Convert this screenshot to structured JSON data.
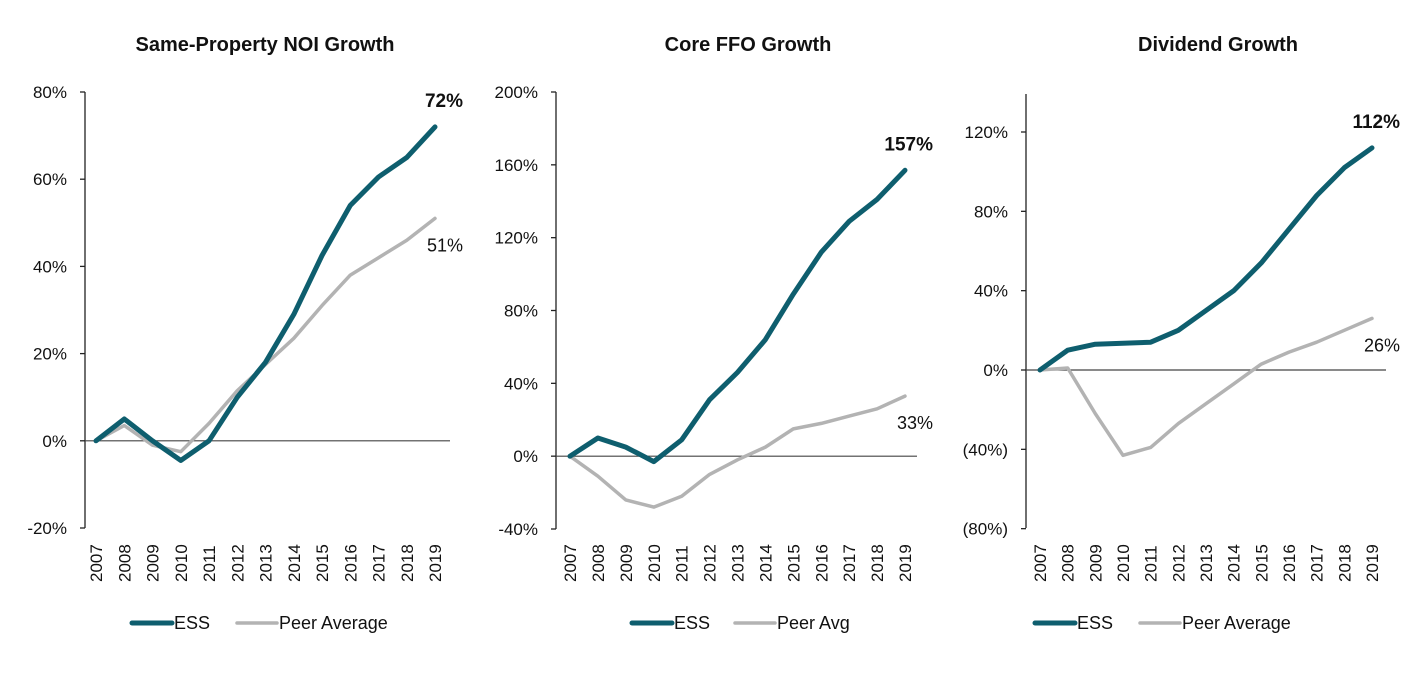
{
  "chart_data": [
    {
      "type": "line",
      "title": "Same-Property NOI Growth",
      "categories": [
        "2007",
        "2008",
        "2009",
        "2010",
        "2011",
        "2012",
        "2013",
        "2014",
        "2015",
        "2016",
        "2017",
        "2018",
        "2019"
      ],
      "ylim": [
        -20,
        80
      ],
      "yticks": [
        -20,
        0,
        20,
        40,
        60,
        80
      ],
      "ytick_labels": [
        "-20%",
        "0%",
        "20%",
        "40%",
        "60%",
        "80%"
      ],
      "series": [
        {
          "name": "ESS",
          "color": "#0e5e6e",
          "values": [
            0,
            5,
            0,
            -4.5,
            0,
            10,
            18,
            29,
            42.5,
            54,
            60.5,
            65,
            72
          ],
          "end_label": "72%",
          "end_label_bold": true
        },
        {
          "name": "Peer Average",
          "color": "#b3b3b3",
          "values": [
            0,
            3.5,
            -1,
            -2.5,
            4,
            11.5,
            17.5,
            23.5,
            31,
            38,
            42,
            46,
            51
          ],
          "end_label": "51%",
          "end_label_bold": false
        }
      ],
      "legend": "bottom",
      "grid": false
    },
    {
      "type": "line",
      "title": "Core FFO Growth",
      "categories": [
        "2007",
        "2008",
        "2009",
        "2010",
        "2011",
        "2012",
        "2013",
        "2014",
        "2015",
        "2016",
        "2017",
        "2018",
        "2019"
      ],
      "ylim": [
        -40,
        200
      ],
      "yticks": [
        -40,
        0,
        40,
        80,
        120,
        160,
        200
      ],
      "ytick_labels": [
        "-40%",
        "0%",
        "40%",
        "80%",
        "120%",
        "160%",
        "200%"
      ],
      "series": [
        {
          "name": "ESS",
          "color": "#0e5e6e",
          "values": [
            0,
            10,
            5,
            -3,
            9,
            31,
            46,
            64,
            89,
            112,
            129,
            141,
            157
          ],
          "end_label": "157%",
          "end_label_bold": true
        },
        {
          "name": "Peer Avg",
          "color": "#b3b3b3",
          "values": [
            0,
            -11,
            -24,
            -28,
            -22,
            -10,
            -2,
            5,
            15,
            18,
            22,
            26,
            33
          ],
          "end_label": "33%",
          "end_label_bold": false
        }
      ],
      "legend": "bottom",
      "grid": false
    },
    {
      "type": "line",
      "title": "Dividend Growth",
      "categories": [
        "2007",
        "2008",
        "2009",
        "2010",
        "2011",
        "2012",
        "2013",
        "2014",
        "2015",
        "2016",
        "2017",
        "2018",
        "2019"
      ],
      "ylim": [
        -80,
        140
      ],
      "yticks": [
        -80,
        -40,
        0,
        40,
        80,
        120
      ],
      "ytick_labels": [
        "(80%)",
        "(40%)",
        "0%",
        "40%",
        "80%",
        "120%"
      ],
      "series": [
        {
          "name": "ESS",
          "color": "#0e5e6e",
          "values": [
            0,
            10,
            13,
            13.5,
            14,
            20,
            30,
            40,
            54,
            71,
            88,
            102,
            112
          ],
          "end_label": "112%",
          "end_label_bold": true
        },
        {
          "name": "Peer Average",
          "color": "#b3b3b3",
          "values": [
            0,
            1,
            -22,
            -43,
            -39,
            -27,
            -17,
            -7,
            3,
            9,
            14,
            20,
            26
          ],
          "end_label": "26%",
          "end_label_bold": false
        }
      ],
      "legend": "bottom",
      "grid": false
    }
  ]
}
